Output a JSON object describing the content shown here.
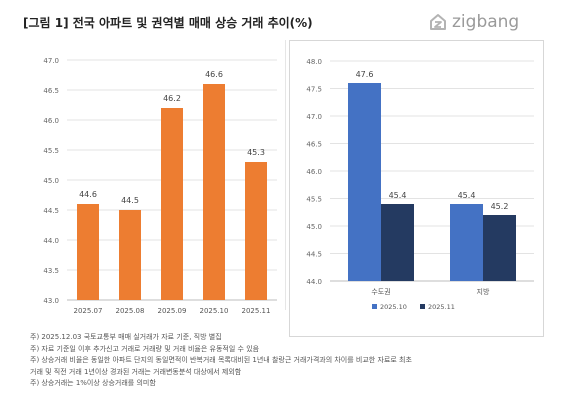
{
  "title": "[그림 1] 전국 아파트 및 권역별 매매 상승 거래 추이(%)",
  "logo": {
    "text": "zigbang",
    "icon": "zigbang-house-icon",
    "color": "#9a9a9a"
  },
  "colors": {
    "orange": "#ED7D31",
    "blue": "#4472C4",
    "navy": "#243A61",
    "grid": "#e3e3e3",
    "axis": "#888888"
  },
  "chart_data": [
    {
      "type": "bar",
      "categories": [
        "2025.07",
        "2025.08",
        "2025.09",
        "2025.10",
        "2025.11"
      ],
      "values": [
        44.6,
        44.5,
        46.2,
        46.6,
        45.3
      ],
      "value_labels": [
        "44.6",
        "44.5",
        "46.2",
        "46.6",
        "45.3"
      ],
      "ylim": [
        43.0,
        47.0
      ],
      "yticks": [
        "43.0",
        "43.5",
        "44.0",
        "44.5",
        "45.0",
        "45.5",
        "46.0",
        "46.5",
        "47.0"
      ],
      "grid": true
    },
    {
      "type": "bar",
      "categories": [
        "수도권",
        "지방"
      ],
      "series": [
        {
          "name": "2025.10",
          "values": [
            47.6,
            45.4
          ],
          "value_labels": [
            "47.6",
            "45.4"
          ]
        },
        {
          "name": "2025.11",
          "values": [
            45.4,
            45.2
          ],
          "value_labels": [
            "45.4",
            "45.2"
          ]
        }
      ],
      "ylim": [
        44.0,
        48.0
      ],
      "yticks": [
        "44.0",
        "44.5",
        "45.0",
        "45.5",
        "46.0",
        "46.5",
        "47.0",
        "47.5",
        "48.0"
      ],
      "grid": true,
      "legend": "bottom"
    }
  ],
  "notes": [
    "주) 2025.12.03 국토교통부 매매 실거래가 자료 기준, 직방 별집",
    "주) 자료 기준일 이후 추가신고 거래로 거래량 및 거래 비율은 유동적일 수 있음",
    "주) 상승거래 비율은 동일한 아파트 단지의 동일면적이 반복거래 목록대비된 1년내 찰랑근 거래가격과의 차이를 비교한 자료로 최초",
    "거래 및 직전 거래 1년이상 경과된 거래는 거래변동분석 대상에서 제외함",
    "주) 상승거래는 1%이상 상승거래를 의미함"
  ]
}
